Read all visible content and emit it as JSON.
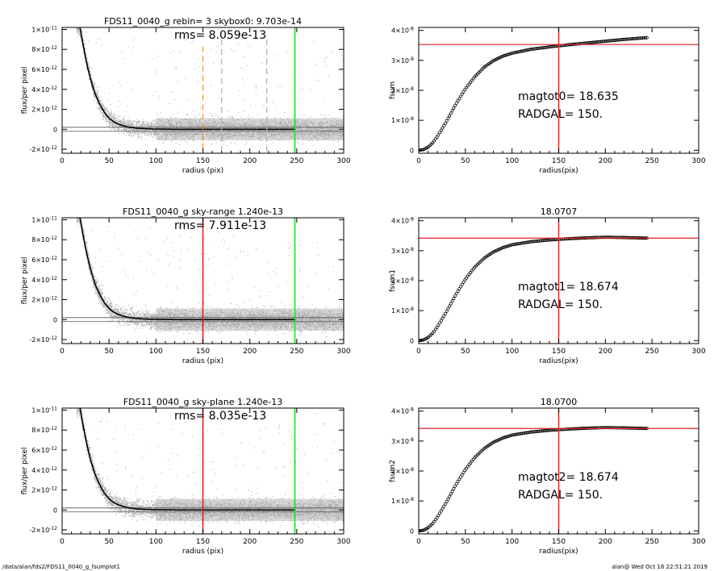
{
  "footer": {
    "path": "/data/alan/fds2/FDS11_0040_g_fsumplot1",
    "stamp": "alan@  Wed Oct 16 22:51:21 2019"
  },
  "colors": {
    "points": "#a8a8a8",
    "profile": "#000000",
    "sky_marker_top": "#f08a24",
    "sky_marker": "#e02020",
    "outer_radius": "#22dd22",
    "dashed_grey": "#b0b0b0",
    "fit_line": "#e02020"
  },
  "chart_data": [
    {
      "id": "profile-1",
      "type": "scatter",
      "title": "FDS11_0040_g rebin= 3    skybox0:  9.703e-14",
      "annotation": "rms= 8.059e-13",
      "xlabel": "radius (pix)",
      "ylabel": "flux/per pixel",
      "xlim": [
        0,
        300
      ],
      "ylim": [
        -2.4e-12,
        1.02e-11
      ],
      "xticks": [
        "0",
        "50",
        "100",
        "150",
        "200",
        "250",
        "300"
      ],
      "yticks": [
        {
          "value": -2e-12,
          "label": "-2×10",
          "exp": "-12"
        },
        {
          "value": 0,
          "label": "0",
          "exp": ""
        },
        {
          "value": 2e-12,
          "label": "2×10",
          "exp": "-12"
        },
        {
          "value": 4e-12,
          "label": "4×10",
          "exp": "-12"
        },
        {
          "value": 6e-12,
          "label": "6×10",
          "exp": "-12"
        },
        {
          "value": 8e-12,
          "label": "8×10",
          "exp": "-12"
        },
        {
          "value": 1e-11,
          "label": "1×10",
          "exp": "-11"
        }
      ],
      "profile": {
        "x": [
          19,
          22,
          26,
          30,
          35,
          40,
          45,
          50,
          55,
          60,
          70,
          80,
          90,
          100,
          120,
          140,
          170,
          200,
          250
        ],
        "y": [
          1.02e-11,
          8.6e-12,
          6.7e-12,
          5.1e-12,
          3.6e-12,
          2.5e-12,
          1.7e-12,
          1.1e-12,
          7.5e-13,
          5e-13,
          2.3e-13,
          1e-13,
          5e-14,
          2e-14,
          0,
          0,
          0,
          0,
          0
        ]
      },
      "band_start": 100,
      "vlines": [
        {
          "x": 150,
          "color": "sky_marker_top",
          "style": "dashed",
          "from": 8.3e-12
        },
        {
          "x": 170,
          "color": "dashed_grey",
          "style": "dashed",
          "from": 9e-12
        },
        {
          "x": 218,
          "color": "dashed_grey",
          "style": "dashed",
          "from": 9e-12
        },
        {
          "x": 248,
          "color": "outer_radius",
          "style": "solid"
        }
      ]
    },
    {
      "id": "growth-1",
      "type": "scatter",
      "title": "",
      "annotation": "magtot0=  18.635",
      "annotation2": "RADGAL=    150.",
      "xlabel": "radius(pix)",
      "ylabel": "fsum",
      "xlim": [
        0,
        300
      ],
      "ylim": [
        -1e-09,
        4.1e-08
      ],
      "xticks": [
        "0",
        "50",
        "100",
        "150",
        "200",
        "250",
        "300"
      ],
      "yticks": [
        {
          "value": 0,
          "label": "0",
          "exp": ""
        },
        {
          "value": 1e-08,
          "label": "1×10",
          "exp": "-8"
        },
        {
          "value": 2e-08,
          "label": "2×10",
          "exp": "-8"
        },
        {
          "value": 3e-08,
          "label": "3×10",
          "exp": "-8"
        },
        {
          "value": 4e-08,
          "label": "4×10",
          "exp": "-8"
        }
      ],
      "curve": {
        "x": [
          0,
          5,
          10,
          15,
          20,
          30,
          40,
          50,
          60,
          70,
          80,
          90,
          100,
          120,
          140,
          160,
          180,
          200,
          220,
          245
        ],
        "y": [
          0,
          2e-10,
          1e-09,
          2.5e-09,
          4.6e-09,
          9.8e-09,
          1.55e-08,
          2.05e-08,
          2.45e-08,
          2.77e-08,
          2.99e-08,
          3.14e-08,
          3.24e-08,
          3.37e-08,
          3.45e-08,
          3.52e-08,
          3.58e-08,
          3.64e-08,
          3.7e-08,
          3.76e-08
        ]
      },
      "hline": 3.53e-08,
      "vline": 150
    },
    {
      "id": "profile-2",
      "type": "scatter",
      "title": "FDS11_0040_g sky-range  1.240e-13",
      "annotation": "rms= 7.911e-13",
      "xlabel": "radius (pix)",
      "ylabel": "flux/per pixel",
      "xlim": [
        0,
        300
      ],
      "ylim": [
        -2.4e-12,
        1.02e-11
      ],
      "xticks": [
        "0",
        "50",
        "100",
        "150",
        "200",
        "250",
        "300"
      ],
      "yticks": [
        {
          "value": -2e-12,
          "label": "-2×10",
          "exp": "-12"
        },
        {
          "value": 0,
          "label": "0",
          "exp": ""
        },
        {
          "value": 2e-12,
          "label": "2×10",
          "exp": "-12"
        },
        {
          "value": 4e-12,
          "label": "4×10",
          "exp": "-12"
        },
        {
          "value": 6e-12,
          "label": "6×10",
          "exp": "-12"
        },
        {
          "value": 8e-12,
          "label": "8×10",
          "exp": "-12"
        },
        {
          "value": 1e-11,
          "label": "1×10",
          "exp": "-11"
        }
      ],
      "profile": {
        "x": [
          19,
          22,
          26,
          30,
          35,
          40,
          45,
          50,
          55,
          60,
          70,
          80,
          90,
          100,
          120,
          140,
          170,
          200,
          250
        ],
        "y": [
          1.02e-11,
          8.6e-12,
          6.7e-12,
          5.1e-12,
          3.6e-12,
          2.5e-12,
          1.7e-12,
          1.1e-12,
          7.5e-13,
          5e-13,
          2.3e-13,
          1e-13,
          5e-14,
          2e-14,
          0,
          0,
          0,
          0,
          0
        ]
      },
      "band_start": 100,
      "vlines": [
        {
          "x": 150,
          "color": "sky_marker",
          "style": "solid"
        },
        {
          "x": 248,
          "color": "outer_radius",
          "style": "solid"
        }
      ]
    },
    {
      "id": "growth-2",
      "type": "scatter",
      "title": "18.0707",
      "annotation": "magtot1=  18.674",
      "annotation2": "RADGAL=    150.",
      "xlabel": "radius(pix)",
      "ylabel": "fsum1",
      "xlim": [
        0,
        300
      ],
      "ylim": [
        -1e-09,
        4.1e-08
      ],
      "xticks": [
        "0",
        "50",
        "100",
        "150",
        "200",
        "250",
        "300"
      ],
      "yticks": [
        {
          "value": 0,
          "label": "0",
          "exp": ""
        },
        {
          "value": 1e-08,
          "label": "1×10",
          "exp": "-8"
        },
        {
          "value": 2e-08,
          "label": "2×10",
          "exp": "-8"
        },
        {
          "value": 3e-08,
          "label": "3×10",
          "exp": "-8"
        },
        {
          "value": 4e-08,
          "label": "4×10",
          "exp": "-8"
        }
      ],
      "curve": {
        "x": [
          0,
          5,
          10,
          15,
          20,
          30,
          40,
          50,
          60,
          70,
          80,
          90,
          100,
          120,
          140,
          160,
          180,
          200,
          220,
          245
        ],
        "y": [
          0,
          2e-10,
          1e-09,
          2.5e-09,
          4.6e-09,
          9.8e-09,
          1.55e-08,
          2.05e-08,
          2.45e-08,
          2.75e-08,
          2.96e-08,
          3.1e-08,
          3.2e-08,
          3.3e-08,
          3.36e-08,
          3.4e-08,
          3.43e-08,
          3.45e-08,
          3.44e-08,
          3.42e-08
        ]
      },
      "hline": 3.42e-08,
      "vline": 150
    },
    {
      "id": "profile-3",
      "type": "scatter",
      "title": "FDS11_0040_g sky-plane  1.240e-13",
      "annotation": "rms= 8.035e-13",
      "xlabel": "radius (pix)",
      "ylabel": "flux/per pixel",
      "xlim": [
        0,
        300
      ],
      "ylim": [
        -2.4e-12,
        1.02e-11
      ],
      "xticks": [
        "0",
        "50",
        "100",
        "150",
        "200",
        "250",
        "300"
      ],
      "yticks": [
        {
          "value": -2e-12,
          "label": "-2×10",
          "exp": "-12"
        },
        {
          "value": 0,
          "label": "0",
          "exp": ""
        },
        {
          "value": 2e-12,
          "label": "2×10",
          "exp": "-12"
        },
        {
          "value": 4e-12,
          "label": "4×10",
          "exp": "-12"
        },
        {
          "value": 6e-12,
          "label": "6×10",
          "exp": "-12"
        },
        {
          "value": 8e-12,
          "label": "8×10",
          "exp": "-12"
        },
        {
          "value": 1e-11,
          "label": "1×10",
          "exp": "-11"
        }
      ],
      "profile": {
        "x": [
          19,
          22,
          26,
          30,
          35,
          40,
          45,
          50,
          55,
          60,
          70,
          80,
          90,
          100,
          120,
          140,
          170,
          200,
          250
        ],
        "y": [
          1.02e-11,
          8.6e-12,
          6.7e-12,
          5.1e-12,
          3.6e-12,
          2.5e-12,
          1.7e-12,
          1.1e-12,
          7.5e-13,
          5e-13,
          2.3e-13,
          1e-13,
          5e-14,
          2e-14,
          0,
          0,
          0,
          0,
          0
        ]
      },
      "band_start": 100,
      "vlines": [
        {
          "x": 150,
          "color": "sky_marker",
          "style": "solid"
        },
        {
          "x": 248,
          "color": "outer_radius",
          "style": "solid"
        }
      ]
    },
    {
      "id": "growth-3",
      "type": "scatter",
      "title": "18.0700",
      "annotation": "magtot2=  18.674",
      "annotation2": "RADGAL=    150.",
      "xlabel": "radius(pix)",
      "ylabel": "fsum2",
      "xlim": [
        0,
        300
      ],
      "ylim": [
        -1e-09,
        4.1e-08
      ],
      "xticks": [
        "0",
        "50",
        "100",
        "150",
        "200",
        "250",
        "300"
      ],
      "yticks": [
        {
          "value": 0,
          "label": "0",
          "exp": ""
        },
        {
          "value": 1e-08,
          "label": "1×10",
          "exp": "-8"
        },
        {
          "value": 2e-08,
          "label": "2×10",
          "exp": "-8"
        },
        {
          "value": 3e-08,
          "label": "3×10",
          "exp": "-8"
        },
        {
          "value": 4e-08,
          "label": "4×10",
          "exp": "-8"
        }
      ],
      "curve": {
        "x": [
          0,
          5,
          10,
          15,
          20,
          30,
          40,
          50,
          60,
          70,
          80,
          90,
          100,
          120,
          140,
          160,
          180,
          200,
          220,
          245
        ],
        "y": [
          0,
          2e-10,
          1e-09,
          2.5e-09,
          4.6e-09,
          9.8e-09,
          1.55e-08,
          2.05e-08,
          2.45e-08,
          2.75e-08,
          2.96e-08,
          3.1e-08,
          3.2e-08,
          3.3e-08,
          3.36e-08,
          3.4e-08,
          3.43e-08,
          3.45e-08,
          3.44e-08,
          3.42e-08
        ]
      },
      "hline": 3.42e-08,
      "vline": 150
    }
  ]
}
